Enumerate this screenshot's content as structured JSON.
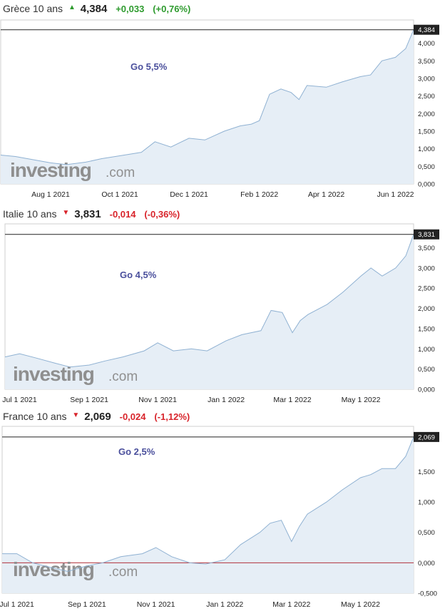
{
  "colors": {
    "up": "#2e9b2e",
    "down": "#d8232a",
    "line": "#8fb1d2",
    "fill": "#e6eef6",
    "note": "#4a4f9c",
    "zero": "#b0303a"
  },
  "watermark": {
    "brand": "investing",
    "suffix": ".com"
  },
  "charts": [
    {
      "header": {
        "name": "Grèce 10 ans",
        "direction": "up",
        "arrow": "▲",
        "last": "4,384",
        "change": "+0,033",
        "change_pct": "(+0,76%)"
      },
      "annotation": "Go 5,5%",
      "last_label": "4,384"
    },
    {
      "header": {
        "name": "Italie 10 ans",
        "direction": "down",
        "arrow": "▼",
        "last": "3,831",
        "change": "-0,014",
        "change_pct": "(-0,36%)"
      },
      "annotation": "Go 4,5%",
      "last_label": "3,831"
    },
    {
      "header": {
        "name": "France 10 ans",
        "direction": "down",
        "arrow": "▼",
        "last": "2,069",
        "change": "-0,024",
        "change_pct": "(-1,12%)"
      },
      "annotation": "Go 2,5%",
      "last_label": "2,069"
    }
  ],
  "chart_data": [
    {
      "type": "area",
      "title": "Grèce 10 ans",
      "x_range": [
        "2021-06-18",
        "2022-06-17"
      ],
      "ylim": [
        0,
        4.5
      ],
      "yticks": [
        0,
        0.5,
        1,
        1.5,
        2,
        2.5,
        3,
        3.5,
        4
      ],
      "ytick_labels": [
        "0,000",
        "0,500",
        "1,000",
        "1,500",
        "2,000",
        "2,500",
        "3,000",
        "3,500",
        "4,000"
      ],
      "xticks": [
        "2021-08-01",
        "2021-10-01",
        "2021-12-01",
        "2022-02-01",
        "2022-04-01",
        "2022-06-01"
      ],
      "xtick_labels": [
        "Aug 1 2021",
        "Oct 1 2021",
        "Dec 1 2021",
        "Feb 1 2022",
        "Apr 1 2022",
        "Jun 1 2022"
      ],
      "series": [
        {
          "x": [
            "2021-06-18",
            "2021-07-01",
            "2021-07-15",
            "2021-08-01",
            "2021-08-15",
            "2021-09-01",
            "2021-09-15",
            "2021-10-01",
            "2021-10-20",
            "2021-11-01",
            "2021-11-15",
            "2021-12-01",
            "2021-12-15",
            "2022-01-01",
            "2022-01-15",
            "2022-01-25",
            "2022-02-01",
            "2022-02-10",
            "2022-02-20",
            "2022-03-01",
            "2022-03-08",
            "2022-03-15",
            "2022-04-01",
            "2022-04-15",
            "2022-05-01",
            "2022-05-10",
            "2022-05-20",
            "2022-06-01",
            "2022-06-10",
            "2022-06-17"
          ],
          "y": [
            0.82,
            0.78,
            0.7,
            0.6,
            0.55,
            0.62,
            0.72,
            0.8,
            0.9,
            1.2,
            1.05,
            1.3,
            1.25,
            1.5,
            1.65,
            1.7,
            1.8,
            2.55,
            2.7,
            2.6,
            2.4,
            2.8,
            2.75,
            2.9,
            3.05,
            3.1,
            3.5,
            3.6,
            3.85,
            4.384
          ]
        }
      ],
      "last_value": 4.384
    },
    {
      "type": "area",
      "title": "Italie 10 ans",
      "x_range": [
        "2021-06-18",
        "2022-06-17"
      ],
      "ylim": [
        0,
        3.95
      ],
      "yticks": [
        0,
        0.5,
        1,
        1.5,
        2,
        2.5,
        3,
        3.5
      ],
      "ytick_labels": [
        "0,000",
        "0,500",
        "1,000",
        "1,500",
        "2,000",
        "2,500",
        "3,000",
        "3,500"
      ],
      "xticks": [
        "2021-07-01",
        "2021-09-01",
        "2021-11-01",
        "2022-01-01",
        "2022-03-01",
        "2022-05-01"
      ],
      "xtick_labels": [
        "Jul 1 2021",
        "Sep 1 2021",
        "Nov 1 2021",
        "Jan 1 2022",
        "Mar 1 2022",
        "May 1 2022"
      ],
      "series": [
        {
          "x": [
            "2021-06-18",
            "2021-07-01",
            "2021-07-15",
            "2021-08-01",
            "2021-08-15",
            "2021-09-01",
            "2021-09-15",
            "2021-10-01",
            "2021-10-20",
            "2021-11-01",
            "2021-11-15",
            "2021-12-01",
            "2021-12-15",
            "2022-01-01",
            "2022-01-15",
            "2022-02-01",
            "2022-02-10",
            "2022-02-20",
            "2022-03-01",
            "2022-03-08",
            "2022-03-15",
            "2022-04-01",
            "2022-04-15",
            "2022-05-01",
            "2022-05-10",
            "2022-05-20",
            "2022-06-01",
            "2022-06-10",
            "2022-06-17"
          ],
          "y": [
            0.8,
            0.88,
            0.78,
            0.65,
            0.55,
            0.6,
            0.7,
            0.8,
            0.95,
            1.15,
            0.95,
            1.0,
            0.95,
            1.2,
            1.35,
            1.45,
            1.95,
            1.9,
            1.4,
            1.7,
            1.85,
            2.1,
            2.4,
            2.8,
            3.0,
            2.8,
            3.0,
            3.3,
            3.831
          ]
        }
      ],
      "last_value": 3.831
    },
    {
      "type": "area",
      "title": "France 10 ans",
      "x_range": [
        "2021-06-18",
        "2022-06-17"
      ],
      "ylim": [
        -0.5,
        2.15
      ],
      "yticks": [
        -0.5,
        0,
        0.5,
        1,
        1.5
      ],
      "ytick_labels": [
        "-0,500",
        "0,000",
        "0,500",
        "1,000",
        "1,500"
      ],
      "xticks": [
        "2021-07-01",
        "2021-09-01",
        "2021-11-01",
        "2022-01-01",
        "2022-03-01",
        "2022-05-01"
      ],
      "xtick_labels": [
        "Jul 1 2021",
        "Sep 1 2021",
        "Nov 1 2021",
        "Jan 1 2022",
        "Mar 1 2022",
        "May 1 2022"
      ],
      "series": [
        {
          "x": [
            "2021-06-18",
            "2021-07-01",
            "2021-07-15",
            "2021-08-01",
            "2021-08-15",
            "2021-09-01",
            "2021-09-15",
            "2021-10-01",
            "2021-10-20",
            "2021-11-01",
            "2021-11-15",
            "2021-12-01",
            "2021-12-15",
            "2022-01-01",
            "2022-01-15",
            "2022-02-01",
            "2022-02-10",
            "2022-02-20",
            "2022-03-01",
            "2022-03-08",
            "2022-03-15",
            "2022-04-01",
            "2022-04-15",
            "2022-05-01",
            "2022-05-10",
            "2022-05-20",
            "2022-06-01",
            "2022-06-10",
            "2022-06-17"
          ],
          "y": [
            0.15,
            0.15,
            0.0,
            -0.08,
            -0.14,
            -0.05,
            0.0,
            0.1,
            0.15,
            0.25,
            0.1,
            0.0,
            -0.02,
            0.05,
            0.3,
            0.5,
            0.65,
            0.7,
            0.35,
            0.6,
            0.8,
            1.0,
            1.2,
            1.4,
            1.45,
            1.55,
            1.55,
            1.75,
            2.069
          ]
        }
      ],
      "last_value": 2.069
    }
  ]
}
